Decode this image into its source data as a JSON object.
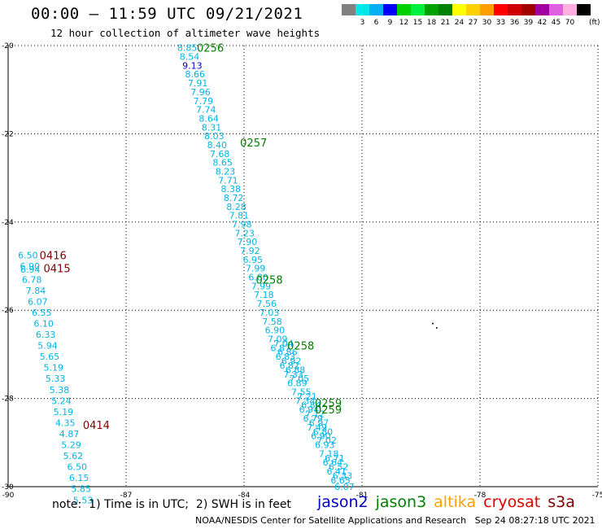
{
  "header": {
    "title": "00:00 – 11:59 UTC 09/21/2021",
    "subtitle": "12 hour collection of altimeter wave heights"
  },
  "colorbar": {
    "unit": "(ft)",
    "swatches": [
      {
        "color": "#808080",
        "label": ""
      },
      {
        "color": "#00e8e8",
        "label": "3"
      },
      {
        "color": "#00b0f0",
        "label": "6"
      },
      {
        "color": "#0000ff",
        "label": "9"
      },
      {
        "color": "#00d000",
        "label": "12"
      },
      {
        "color": "#00f040",
        "label": "15"
      },
      {
        "color": "#00a000",
        "label": "18"
      },
      {
        "color": "#008000",
        "label": "21"
      },
      {
        "color": "#ffff00",
        "label": "24"
      },
      {
        "color": "#ffd000",
        "label": "27"
      },
      {
        "color": "#ffa000",
        "label": "30"
      },
      {
        "color": "#ff0000",
        "label": "33"
      },
      {
        "color": "#d00000",
        "label": "36"
      },
      {
        "color": "#a00000",
        "label": "39"
      },
      {
        "color": "#a000a0",
        "label": "42"
      },
      {
        "color": "#e060e0",
        "label": "45"
      },
      {
        "color": "#ffb0e0",
        "label": "70"
      },
      {
        "color": "#000000",
        "label": ""
      }
    ]
  },
  "map": {
    "lon_range": [
      -90,
      -75
    ],
    "lat_range": [
      -30,
      -20
    ],
    "lon_ticks": [
      "-90",
      "-87",
      "-84",
      "-81",
      "-78",
      "-75"
    ],
    "lat_ticks": [
      "-20",
      "-22",
      "-24",
      "-26",
      "-28",
      "-30"
    ],
    "colors": {
      "cyan": "#00b4e4",
      "blue": "#0000c8",
      "green": "#008000",
      "red": "#800000"
    },
    "pass_labels": [
      {
        "text": "0256",
        "lon": -85.2,
        "lat": -20.05,
        "color": "#008000"
      },
      {
        "text": "0257",
        "lon": -84.1,
        "lat": -22.2,
        "color": "#008000"
      },
      {
        "text": "0258",
        "lon": -83.7,
        "lat": -25.3,
        "color": "#008000"
      },
      {
        "text": "0258",
        "lon": -82.9,
        "lat": -26.8,
        "color": "#008000"
      },
      {
        "text": "0259",
        "lon": -82.2,
        "lat": -28.1,
        "color": "#008000"
      },
      {
        "text": "0259",
        "lon": -82.2,
        "lat": -28.25,
        "color": "#008000"
      },
      {
        "text": "0416",
        "lon": -89.2,
        "lat": -24.75,
        "color": "#800000"
      },
      {
        "text": "0415",
        "lon": -89.1,
        "lat": -25.05,
        "color": "#800000"
      },
      {
        "text": "0414",
        "lon": -88.1,
        "lat": -28.6,
        "color": "#800000"
      }
    ],
    "track_east": [
      {
        "v": "8.85",
        "lon": -85.7,
        "lat": -20.05
      },
      {
        "v": "8.54",
        "lon": -85.64,
        "lat": -20.25
      },
      {
        "v": "9.13",
        "lon": -85.57,
        "lat": -20.45,
        "c": "blue"
      },
      {
        "v": "8.66",
        "lon": -85.5,
        "lat": -20.65
      },
      {
        "v": "7.91",
        "lon": -85.43,
        "lat": -20.85
      },
      {
        "v": "7.96",
        "lon": -85.36,
        "lat": -21.05
      },
      {
        "v": "7.79",
        "lon": -85.29,
        "lat": -21.25
      },
      {
        "v": "7.74",
        "lon": -85.22,
        "lat": -21.45
      },
      {
        "v": "8.64",
        "lon": -85.15,
        "lat": -21.65
      },
      {
        "v": "8.31",
        "lon": -85.08,
        "lat": -21.85
      },
      {
        "v": "8.03",
        "lon": -85.01,
        "lat": -22.05
      },
      {
        "v": "8.40",
        "lon": -84.94,
        "lat": -22.25
      },
      {
        "v": "7.68",
        "lon": -84.87,
        "lat": -22.45
      },
      {
        "v": "8.65",
        "lon": -84.8,
        "lat": -22.65
      },
      {
        "v": "8.23",
        "lon": -84.73,
        "lat": -22.85
      },
      {
        "v": "7.71",
        "lon": -84.66,
        "lat": -23.05
      },
      {
        "v": "8.38",
        "lon": -84.59,
        "lat": -23.25
      },
      {
        "v": "8.72",
        "lon": -84.52,
        "lat": -23.45
      },
      {
        "v": "8.28",
        "lon": -84.45,
        "lat": -23.65
      },
      {
        "v": "7.81",
        "lon": -84.38,
        "lat": -23.85
      },
      {
        "v": "7.98",
        "lon": -84.31,
        "lat": -24.05
      },
      {
        "v": "7.23",
        "lon": -84.24,
        "lat": -24.25
      },
      {
        "v": "7.90",
        "lon": -84.17,
        "lat": -24.45
      },
      {
        "v": "7.92",
        "lon": -84.1,
        "lat": -24.65
      },
      {
        "v": "6.95",
        "lon": -84.03,
        "lat": -24.85
      },
      {
        "v": "7.99",
        "lon": -83.96,
        "lat": -25.05
      },
      {
        "v": "6.80",
        "lon": -83.89,
        "lat": -25.25
      },
      {
        "v": "7.99",
        "lon": -83.82,
        "lat": -25.45
      },
      {
        "v": "7.18",
        "lon": -83.75,
        "lat": -25.65
      },
      {
        "v": "7.56",
        "lon": -83.68,
        "lat": -25.85
      },
      {
        "v": "7.03",
        "lon": -83.61,
        "lat": -26.05
      },
      {
        "v": "7.58",
        "lon": -83.54,
        "lat": -26.25
      },
      {
        "v": "6.90",
        "lon": -83.47,
        "lat": -26.45
      },
      {
        "v": "7.09",
        "lon": -83.4,
        "lat": -26.65
      },
      {
        "v": "6.87",
        "lon": -83.33,
        "lat": -26.85
      },
      {
        "v": "6.83",
        "lon": -83.2,
        "lat": -27.05
      },
      {
        "v": "6.82",
        "lon": -83.1,
        "lat": -27.25
      },
      {
        "v": "7.33",
        "lon": -83.0,
        "lat": -27.45
      },
      {
        "v": "6.89",
        "lon": -82.9,
        "lat": -27.65
      },
      {
        "v": "7.55",
        "lon": -82.8,
        "lat": -27.85
      },
      {
        "v": "7.34",
        "lon": -82.7,
        "lat": -28.05
      },
      {
        "v": "6.94",
        "lon": -82.6,
        "lat": -28.25
      },
      {
        "v": "6.79",
        "lon": -82.5,
        "lat": -28.45
      },
      {
        "v": "7.49",
        "lon": -82.4,
        "lat": -28.65
      },
      {
        "v": "6.90",
        "lon": -82.3,
        "lat": -28.85
      },
      {
        "v": "6.93",
        "lon": -82.2,
        "lat": -29.05
      },
      {
        "v": "7.18",
        "lon": -82.1,
        "lat": -29.25
      },
      {
        "v": "6.64",
        "lon": -82.0,
        "lat": -29.45
      },
      {
        "v": "6.41",
        "lon": -81.9,
        "lat": -29.65
      },
      {
        "v": "6.65",
        "lon": -81.8,
        "lat": -29.85
      },
      {
        "v": "6.07",
        "lon": -81.7,
        "lat": -30.0
      }
    ],
    "track_east_offset": [
      {
        "v": "7.04",
        "lon": -83.25,
        "lat": -26.75
      },
      {
        "v": "6.86",
        "lon": -83.15,
        "lat": -26.95
      },
      {
        "v": "6.92",
        "lon": -83.05,
        "lat": -27.15
      },
      {
        "v": "6.88",
        "lon": -82.95,
        "lat": -27.35
      },
      {
        "v": "7.05",
        "lon": -82.85,
        "lat": -27.55
      },
      {
        "v": "7.21",
        "lon": -82.65,
        "lat": -27.95
      },
      {
        "v": "6.84",
        "lon": -82.55,
        "lat": -28.15
      },
      {
        "v": "7.12",
        "lon": -82.45,
        "lat": -28.35
      },
      {
        "v": "6.97",
        "lon": -82.35,
        "lat": -28.55
      },
      {
        "v": "6.80",
        "lon": -82.25,
        "lat": -28.75
      },
      {
        "v": "7.02",
        "lon": -82.15,
        "lat": -28.95
      },
      {
        "v": "6.71",
        "lon": -81.95,
        "lat": -29.35
      },
      {
        "v": "6.52",
        "lon": -81.85,
        "lat": -29.55
      },
      {
        "v": "6.33",
        "lon": -81.75,
        "lat": -29.75
      }
    ],
    "track_west": [
      {
        "v": "6.50",
        "lon": -89.75,
        "lat": -24.75
      },
      {
        "v": "6.90",
        "lon": -89.7,
        "lat": -25.0
      },
      {
        "v": "6.94",
        "lon": -89.69,
        "lat": -25.07
      },
      {
        "v": "6.78",
        "lon": -89.65,
        "lat": -25.3
      },
      {
        "v": "7.84",
        "lon": -89.55,
        "lat": -25.55
      },
      {
        "v": "6.07",
        "lon": -89.5,
        "lat": -25.8
      },
      {
        "v": "6.55",
        "lon": -89.4,
        "lat": -26.05
      },
      {
        "v": "6.10",
        "lon": -89.35,
        "lat": -26.3
      },
      {
        "v": "6.33",
        "lon": -89.3,
        "lat": -26.55
      },
      {
        "v": "5.94",
        "lon": -89.25,
        "lat": -26.8
      },
      {
        "v": "5.65",
        "lon": -89.2,
        "lat": -27.05
      },
      {
        "v": "5.19",
        "lon": -89.1,
        "lat": -27.3
      },
      {
        "v": "5.33",
        "lon": -89.05,
        "lat": -27.55
      },
      {
        "v": "5.38",
        "lon": -88.95,
        "lat": -27.8
      },
      {
        "v": "5.24",
        "lon": -88.9,
        "lat": -28.05
      },
      {
        "v": "5.19",
        "lon": -88.85,
        "lat": -28.3
      },
      {
        "v": "4.35",
        "lon": -88.8,
        "lat": -28.55
      },
      {
        "v": "4.87",
        "lon": -88.7,
        "lat": -28.8
      },
      {
        "v": "5.29",
        "lon": -88.65,
        "lat": -29.05
      },
      {
        "v": "5.62",
        "lon": -88.6,
        "lat": -29.3
      },
      {
        "v": "6.50",
        "lon": -88.5,
        "lat": -29.55
      },
      {
        "v": "6.15",
        "lon": -88.45,
        "lat": -29.8
      },
      {
        "v": "5.85",
        "lon": -88.4,
        "lat": -30.05
      },
      {
        "v": "5.53",
        "lon": -88.35,
        "lat": -30.3
      }
    ]
  },
  "note": "note:  1) Time is in UTC;  2) SWH is in feet",
  "legend": [
    {
      "text": "jason2",
      "color": "#0000c8"
    },
    {
      "text": "jason3",
      "color": "#008000"
    },
    {
      "text": "altika",
      "color": "#ffa000"
    },
    {
      "text": "cryosat",
      "color": "#e00000"
    },
    {
      "text": "s3a",
      "color": "#800000"
    }
  ],
  "footer": {
    "org": "NOAA/NESDIS Center for Satellite Applications and Research",
    "timestamp": "Sep 24 08:27:18 UTC 2021"
  }
}
